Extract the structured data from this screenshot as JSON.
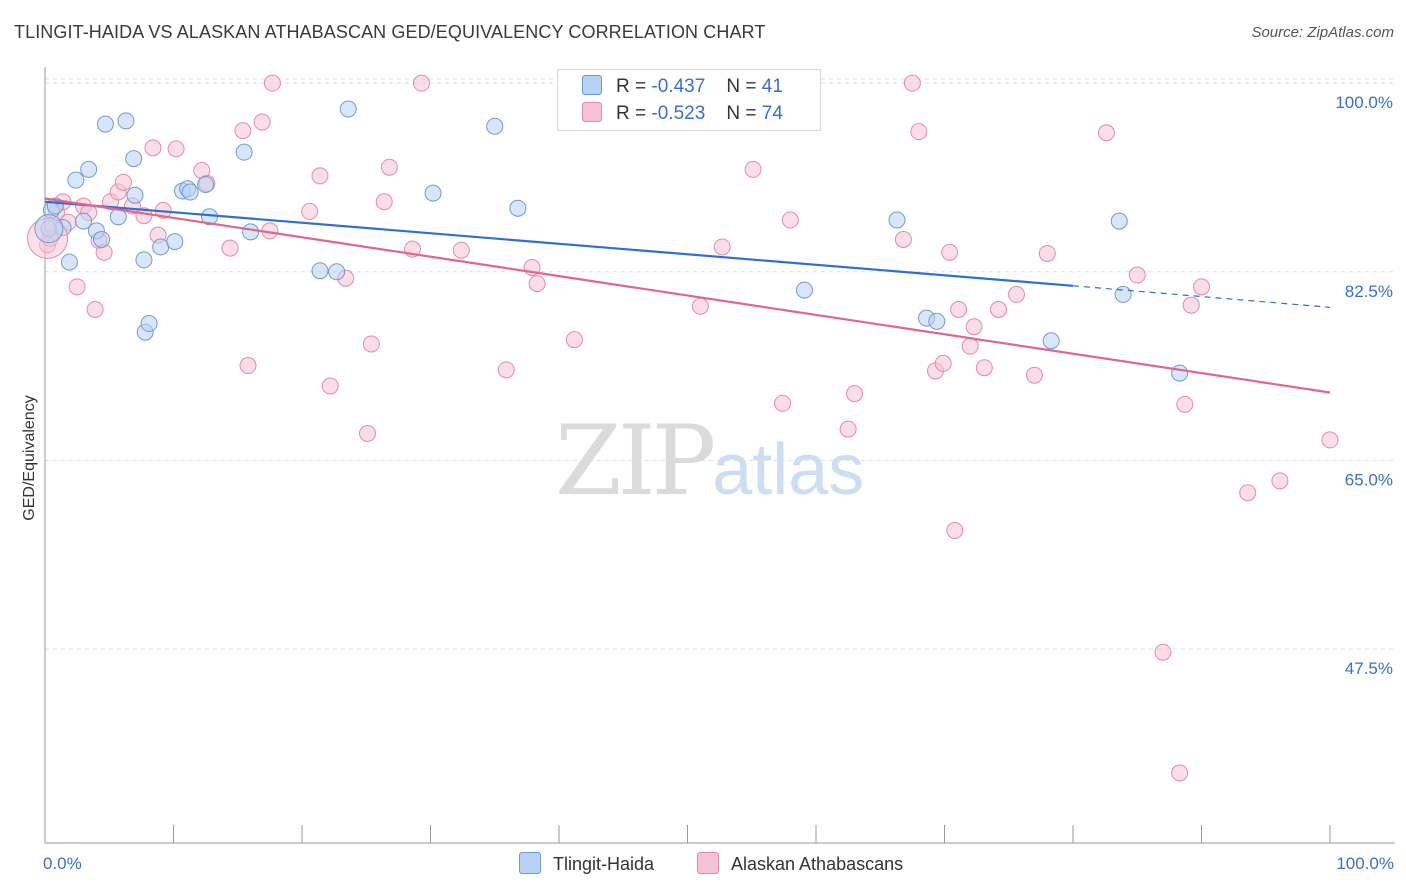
{
  "header": {
    "title": "TLINGIT-HAIDA VS ALASKAN ATHABASCAN GED/EQUIVALENCY CORRELATION CHART",
    "source": "Source: ZipAtlas.com"
  },
  "watermark": {
    "zip": "ZIP",
    "atlas": "atlas"
  },
  "legend": {
    "r_label": "R =",
    "n_label": "N =",
    "rows": [
      {
        "r": "-0.437",
        "n": "41"
      },
      {
        "r": "-0.523",
        "n": "74"
      }
    ]
  },
  "colors": {
    "blue_fill": "#b9d1f3",
    "blue_stroke": "#6f9ad8",
    "blue_line": "#2f6fcf",
    "pink_fill": "#f6c3d3",
    "pink_stroke": "#e68aa8",
    "pink_line": "#e06690",
    "axis_text": "#3a6fcf",
    "grid": "#dddddd"
  },
  "chart_data": {
    "type": "scatter",
    "title": "TLINGIT-HAIDA VS ALASKAN ATHABASCAN GED/EQUIVALENCY CORRELATION CHART",
    "xlabel": "",
    "ylabel": "GED/Equivalency",
    "xlim": [
      0,
      100
    ],
    "ylim": [
      29.5,
      101.5
    ],
    "x_tick_labels": [
      "0.0%",
      "100.0%"
    ],
    "y_ticks": [
      47.5,
      65.0,
      82.5,
      100.0
    ],
    "y_tick_labels": [
      "47.5%",
      "65.0%",
      "82.5%",
      "100.0%"
    ],
    "grid": true,
    "legend_position": "bottom-center",
    "series": [
      {
        "name": "Tlingit-Haida",
        "r": -0.437,
        "n": 41,
        "trend": {
          "x0": 0,
          "y0": 89.0,
          "x1": 80,
          "y1": 81.2,
          "dashed_to_x": 100,
          "dashed_to_y": 79.2
        },
        "points": [
          [
            0.3,
            86.5
          ],
          [
            0.5,
            88.2
          ],
          [
            0.8,
            88.6
          ],
          [
            1.4,
            86.6
          ],
          [
            1.9,
            83.4
          ],
          [
            2.4,
            91.0
          ],
          [
            3.0,
            87.2
          ],
          [
            3.4,
            92.0
          ],
          [
            4.0,
            86.3
          ],
          [
            4.4,
            85.5
          ],
          [
            4.7,
            96.2
          ],
          [
            5.7,
            87.6
          ],
          [
            6.3,
            96.5
          ],
          [
            6.9,
            93.0
          ],
          [
            7.0,
            89.6
          ],
          [
            7.7,
            83.6
          ],
          [
            7.8,
            76.9
          ],
          [
            8.1,
            77.7
          ],
          [
            9.0,
            84.8
          ],
          [
            10.1,
            85.3
          ],
          [
            10.7,
            90.0
          ],
          [
            11.1,
            90.2
          ],
          [
            11.3,
            89.9
          ],
          [
            12.5,
            90.6
          ],
          [
            12.8,
            87.6
          ],
          [
            15.5,
            93.6
          ],
          [
            16.0,
            86.2
          ],
          [
            21.4,
            82.6
          ],
          [
            22.7,
            82.5
          ],
          [
            23.6,
            97.6
          ],
          [
            30.2,
            89.8
          ],
          [
            35.0,
            96.0
          ],
          [
            36.8,
            88.4
          ],
          [
            59.1,
            80.8
          ],
          [
            66.3,
            87.3
          ],
          [
            68.6,
            78.2
          ],
          [
            69.4,
            77.9
          ],
          [
            78.3,
            76.1
          ],
          [
            83.6,
            87.2
          ],
          [
            83.9,
            80.4
          ],
          [
            88.3,
            73.1
          ]
        ]
      },
      {
        "name": "Alaskan Athabascans",
        "r": -0.523,
        "n": 74,
        "trend": {
          "x0": 0,
          "y0": 89.3,
          "x1": 100,
          "y1": 71.3
        },
        "points": [
          [
            0.2,
            85.0
          ],
          [
            0.4,
            85.6
          ],
          [
            0.9,
            88.0
          ],
          [
            1.4,
            89.0
          ],
          [
            1.8,
            87.1
          ],
          [
            2.5,
            81.1
          ],
          [
            3.0,
            88.6
          ],
          [
            3.4,
            88.0
          ],
          [
            3.9,
            79.0
          ],
          [
            4.2,
            85.4
          ],
          [
            4.6,
            84.3
          ],
          [
            5.1,
            89.0
          ],
          [
            5.7,
            89.9
          ],
          [
            6.1,
            90.8
          ],
          [
            6.8,
            88.6
          ],
          [
            7.7,
            87.7
          ],
          [
            8.4,
            94.0
          ],
          [
            8.8,
            85.9
          ],
          [
            9.2,
            88.2
          ],
          [
            10.2,
            93.9
          ],
          [
            12.2,
            91.9
          ],
          [
            12.6,
            90.7
          ],
          [
            14.4,
            84.7
          ],
          [
            15.4,
            95.6
          ],
          [
            15.8,
            73.8
          ],
          [
            16.9,
            96.4
          ],
          [
            17.5,
            86.3
          ],
          [
            17.7,
            100.0
          ],
          [
            20.6,
            88.1
          ],
          [
            21.4,
            91.4
          ],
          [
            22.2,
            71.9
          ],
          [
            23.4,
            81.9
          ],
          [
            25.1,
            67.5
          ],
          [
            25.4,
            75.8
          ],
          [
            26.4,
            89.0
          ],
          [
            26.8,
            92.2
          ],
          [
            28.6,
            84.6
          ],
          [
            29.3,
            100.0
          ],
          [
            32.4,
            84.5
          ],
          [
            35.9,
            73.4
          ],
          [
            37.9,
            82.9
          ],
          [
            38.3,
            81.4
          ],
          [
            41.2,
            76.2
          ],
          [
            51.0,
            79.3
          ],
          [
            52.7,
            84.8
          ],
          [
            55.1,
            92.0
          ],
          [
            57.4,
            70.3
          ],
          [
            58.0,
            87.3
          ],
          [
            62.5,
            67.9
          ],
          [
            63.0,
            71.2
          ],
          [
            66.8,
            85.5
          ],
          [
            67.5,
            100.0
          ],
          [
            68.0,
            95.5
          ],
          [
            69.3,
            73.3
          ],
          [
            69.9,
            74.0
          ],
          [
            70.4,
            84.3
          ],
          [
            71.1,
            79.0
          ],
          [
            72.0,
            75.6
          ],
          [
            72.3,
            77.4
          ],
          [
            73.1,
            73.6
          ],
          [
            74.2,
            79.0
          ],
          [
            75.6,
            80.4
          ],
          [
            77.0,
            72.9
          ],
          [
            78.0,
            84.2
          ],
          [
            82.6,
            95.4
          ],
          [
            85.0,
            82.2
          ],
          [
            87.0,
            47.2
          ],
          [
            88.3,
            36.0
          ],
          [
            88.7,
            70.2
          ],
          [
            89.2,
            79.4
          ],
          [
            90.0,
            81.1
          ],
          [
            93.6,
            62.0
          ],
          [
            96.1,
            63.1
          ],
          [
            100.0,
            66.9
          ]
        ],
        "outlier_points": [
          [
            70.8,
            58.5
          ]
        ]
      }
    ]
  }
}
